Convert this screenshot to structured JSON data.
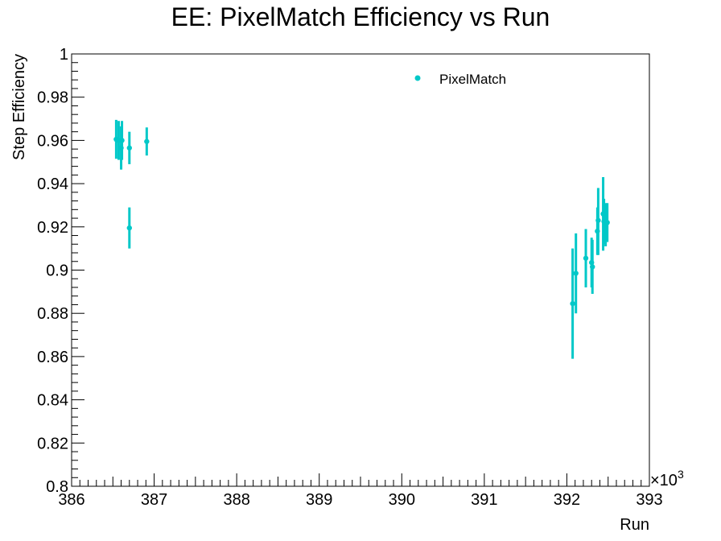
{
  "chart_data": {
    "type": "scatter",
    "title": "EE: PixelMatch Efficiency vs Run",
    "xlabel": "Run",
    "ylabel": "Step Efficiency",
    "x_multiplier_label": "×10",
    "x_multiplier_exp": "3",
    "xlim": [
      386,
      393
    ],
    "ylim": [
      0.8,
      1.0
    ],
    "x_ticks": [
      386,
      387,
      388,
      389,
      390,
      391,
      392,
      393
    ],
    "x_tick_labels": [
      "386",
      "387",
      "388",
      "389",
      "390",
      "391",
      "392",
      "393"
    ],
    "y_ticks": [
      0.8,
      0.82,
      0.84,
      0.86,
      0.88,
      0.9,
      0.92,
      0.94,
      0.96,
      0.98,
      1.0
    ],
    "y_tick_labels": [
      "0.8",
      "0.82",
      "0.84",
      "0.86",
      "0.88",
      "0.9",
      "0.92",
      "0.94",
      "0.96",
      "0.98",
      "1"
    ],
    "grid": false,
    "legend_position": "top-right",
    "color": "#00c8c8",
    "series": [
      {
        "name": "PixelMatch",
        "points": [
          {
            "x": 386.54,
            "y": 0.9605,
            "lo": 0.9515,
            "hi": 0.9695
          },
          {
            "x": 386.57,
            "y": 0.96,
            "lo": 0.951,
            "hi": 0.969
          },
          {
            "x": 386.6,
            "y": 0.9565,
            "lo": 0.9465,
            "hi": 0.9665
          },
          {
            "x": 386.61,
            "y": 0.96,
            "lo": 0.951,
            "hi": 0.969
          },
          {
            "x": 386.7,
            "y": 0.9565,
            "lo": 0.949,
            "hi": 0.964
          },
          {
            "x": 386.7,
            "y": 0.9195,
            "lo": 0.91,
            "hi": 0.929
          },
          {
            "x": 386.91,
            "y": 0.9595,
            "lo": 0.953,
            "hi": 0.966
          },
          {
            "x": 392.07,
            "y": 0.8845,
            "lo": 0.859,
            "hi": 0.91
          },
          {
            "x": 392.11,
            "y": 0.8985,
            "lo": 0.88,
            "hi": 0.917
          },
          {
            "x": 392.23,
            "y": 0.9055,
            "lo": 0.892,
            "hi": 0.919
          },
          {
            "x": 392.3,
            "y": 0.9035,
            "lo": 0.892,
            "hi": 0.915
          },
          {
            "x": 392.31,
            "y": 0.9015,
            "lo": 0.889,
            "hi": 0.914
          },
          {
            "x": 392.37,
            "y": 0.918,
            "lo": 0.907,
            "hi": 0.929
          },
          {
            "x": 392.38,
            "y": 0.923,
            "lo": 0.907,
            "hi": 0.938
          },
          {
            "x": 392.44,
            "y": 0.926,
            "lo": 0.909,
            "hi": 0.943
          },
          {
            "x": 392.45,
            "y": 0.9225,
            "lo": 0.912,
            "hi": 0.933
          },
          {
            "x": 392.47,
            "y": 0.921,
            "lo": 0.911,
            "hi": 0.931
          },
          {
            "x": 392.49,
            "y": 0.922,
            "lo": 0.913,
            "hi": 0.931
          }
        ]
      }
    ]
  }
}
